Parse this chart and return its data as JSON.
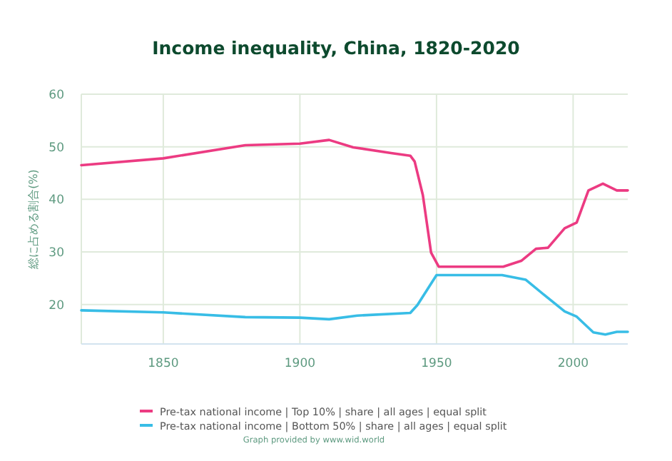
{
  "chart_data": {
    "type": "line",
    "title": "Income inequality, China, 1820-2020",
    "ylabel": "総に占める割合(%)",
    "xlim": [
      1820,
      2020
    ],
    "xticks": [
      1850,
      1900,
      1950,
      2000
    ],
    "ylim": [
      12.5,
      60
    ],
    "yticks": [
      20,
      30,
      40,
      50,
      60
    ],
    "grid": true,
    "legend": "bottom",
    "line_style": "solid",
    "series": [
      {
        "name": "Pre-tax national income | Top 10% | share | all ages | equal split",
        "color": "#ec3b82",
        "x": [
          1820,
          1850,
          1880,
          1900,
          1910.7,
          1919.5,
          1933.4,
          1940.4,
          1942,
          1945,
          1948,
          1950.8,
          1974.4,
          1981,
          1986.4,
          1990.8,
          1996.9,
          2001.3,
          2005.6,
          2010.9,
          2016,
          2020
        ],
        "values": [
          46.5,
          47.8,
          50.3,
          50.6,
          51.3,
          49.9,
          48.8,
          48.3,
          47.2,
          40.8,
          29.9,
          27.2,
          27.2,
          28.3,
          30.6,
          30.8,
          34.5,
          35.6,
          41.7,
          43,
          41.7,
          41.7
        ]
      },
      {
        "name": "Pre-tax national income | Bottom 50% | share | all ages | equal split",
        "color": "#38bde6",
        "x": [
          1820,
          1850,
          1880,
          1900,
          1910.7,
          1921,
          1940.4,
          1943,
          1950,
          1974,
          1982.7,
          1989.7,
          1996.9,
          2001.3,
          2007.4,
          2011.8,
          2016,
          2020
        ],
        "values": [
          18.9,
          18.5,
          17.6,
          17.5,
          17.2,
          17.9,
          18.4,
          19.9,
          25.6,
          25.6,
          24.7,
          21.7,
          18.7,
          17.7,
          14.7,
          14.3,
          14.8,
          14.8
        ]
      }
    ],
    "annotations": [
      "Graph provided by www.wid.world"
    ]
  }
}
